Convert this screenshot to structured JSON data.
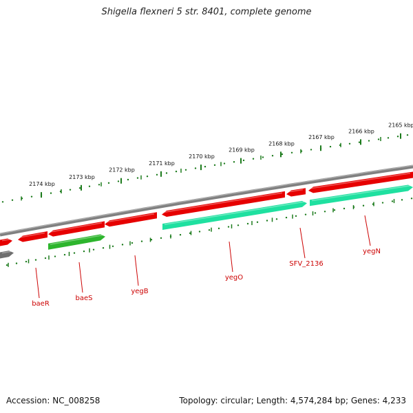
{
  "title": "Shigella flexneri 5 str. 8401, complete genome",
  "footer": {
    "accession": "Accession: NC_008258",
    "topology": "Topology: circular; Length: 4,574,284 bp; Genes: 4,233"
  },
  "colors": {
    "backbone": "#808080",
    "tick": "#1b7a1b",
    "gene_red": "#e60000",
    "gene_green": "#2db52d",
    "gene_teal": "#1fe0a0",
    "label": "#cc0000"
  },
  "ticks": [
    "2165 kbp",
    "2166 kbp",
    "2167 kbp",
    "2168 kbp",
    "2169 kbp",
    "2170 kbp",
    "2171 kbp",
    "2172 kbp",
    "2173 kbp",
    "2174 kbp"
  ],
  "gene_labels": [
    "baeR",
    "baeS",
    "yegB",
    "yegO",
    "SFV_2136",
    "yegN"
  ]
}
